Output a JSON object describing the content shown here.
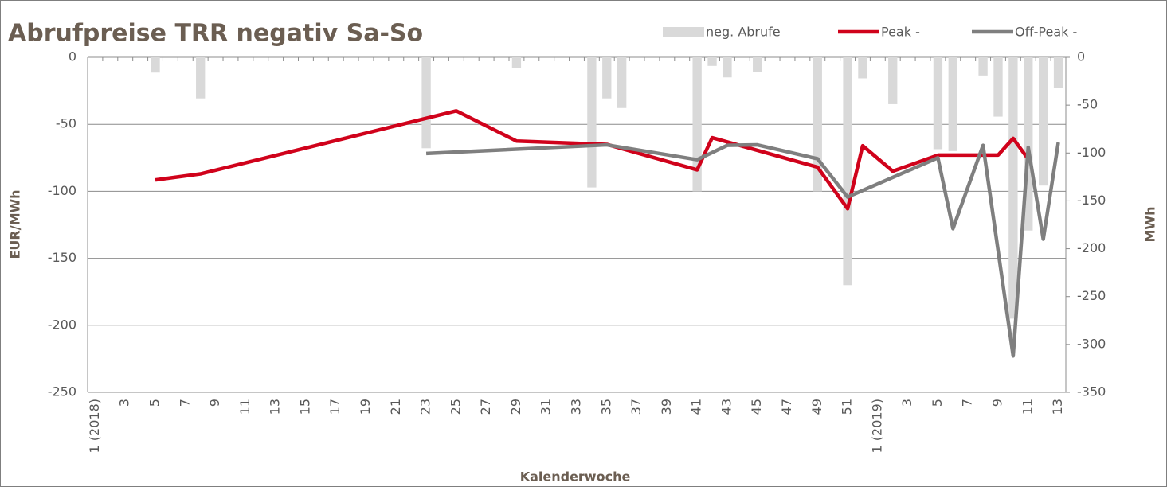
{
  "chart_data": {
    "type": "bar-line",
    "title": "Abrufpreise TRR negativ  Sa-So",
    "x_label": "Kalenderwoche",
    "y_label": "EUR/MWh",
    "y2_label": "MWh",
    "categories": [
      "1 (2018)",
      null,
      "3",
      null,
      "5",
      null,
      "7",
      null,
      "9",
      null,
      "11",
      null,
      "13",
      null,
      "15",
      null,
      "17",
      null,
      "19",
      null,
      "21",
      null,
      "23",
      null,
      "25",
      null,
      "27",
      null,
      "29",
      null,
      "31",
      null,
      "33",
      null,
      "35",
      null,
      "37",
      null,
      "39",
      null,
      "41",
      null,
      "43",
      null,
      "45",
      null,
      "47",
      null,
      "49",
      null,
      "51",
      null,
      "1 (2019)",
      null,
      "3",
      null,
      "5",
      null,
      "7",
      null,
      "9",
      null,
      "11",
      null,
      "13"
    ],
    "ylim": [
      -250,
      0
    ],
    "yticks": [
      0,
      -50,
      -100,
      -150,
      -200,
      -250
    ],
    "y2lim": [
      -350,
      0
    ],
    "y2ticks": [
      0,
      -50,
      -100,
      -150,
      -200,
      -250,
      -300,
      -350
    ],
    "grid": true,
    "connect_gaps": true,
    "legend": "top-right",
    "series": [
      {
        "name": "neg. Abrufe",
        "kind": "bar",
        "axis": "y2",
        "color": "#d9d9d9",
        "values": [
          null,
          null,
          null,
          null,
          -16,
          null,
          null,
          -43,
          null,
          null,
          null,
          null,
          null,
          null,
          null,
          null,
          null,
          null,
          null,
          null,
          null,
          null,
          -95,
          null,
          null,
          null,
          null,
          null,
          -11,
          null,
          null,
          null,
          null,
          -136,
          -43,
          -53,
          null,
          null,
          null,
          null,
          -140,
          -9,
          -21,
          null,
          -15,
          null,
          null,
          null,
          -140,
          null,
          -238,
          -22,
          null,
          -49,
          null,
          null,
          -96,
          -98,
          null,
          -19,
          -62,
          -273,
          -181,
          -134,
          -32
        ]
      },
      {
        "name": "Peak -",
        "kind": "line",
        "color": "#d0021b",
        "values": [
          null,
          null,
          null,
          null,
          -91.5,
          null,
          null,
          -87,
          null,
          null,
          null,
          null,
          null,
          null,
          null,
          null,
          null,
          null,
          null,
          null,
          null,
          null,
          null,
          null,
          -40,
          null,
          null,
          null,
          -62.5,
          null,
          null,
          null,
          null,
          null,
          -65,
          null,
          null,
          null,
          null,
          null,
          -84,
          -60,
          null,
          null,
          null,
          null,
          null,
          null,
          -82,
          null,
          -113,
          -66,
          null,
          -85,
          null,
          null,
          -73,
          -73,
          -73,
          -73,
          -73,
          -60.5,
          -76,
          null,
          null
        ]
      },
      {
        "name": "Off-Peak -",
        "kind": "line",
        "axis": "y2",
        "color": "#7f7f7f",
        "values": [
          null,
          null,
          null,
          null,
          null,
          null,
          null,
          null,
          null,
          null,
          null,
          null,
          null,
          null,
          null,
          null,
          null,
          null,
          null,
          null,
          null,
          null,
          -100.5,
          null,
          null,
          null,
          null,
          null,
          null,
          null,
          null,
          null,
          null,
          null,
          -91.5,
          null,
          null,
          null,
          null,
          null,
          -107,
          null,
          -92,
          null,
          -91.5,
          null,
          null,
          null,
          -106,
          null,
          -146,
          null,
          null,
          null,
          null,
          null,
          -105,
          -179,
          null,
          -92,
          null,
          -312,
          -94,
          -190,
          -89
        ]
      }
    ]
  }
}
